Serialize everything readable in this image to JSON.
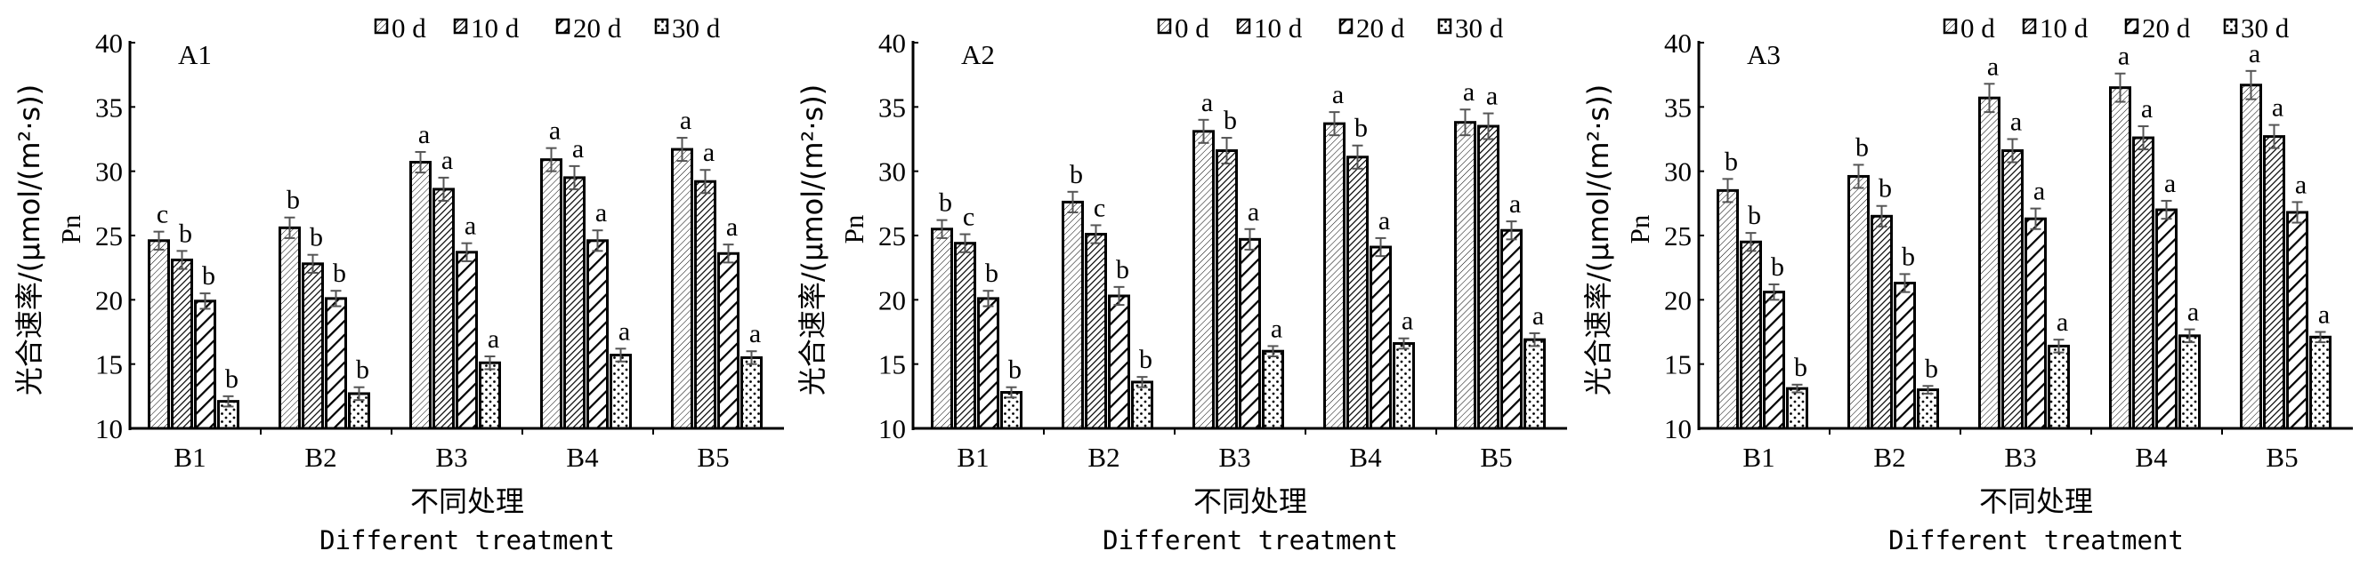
{
  "chart_data": [
    {
      "type": "bar",
      "title": "A1",
      "categories": [
        "B1",
        "B2",
        "B3",
        "B4",
        "B5"
      ],
      "xlabel": "不同处理",
      "xlabel_en": "Different treatment",
      "ylabel": "光合速率/(μmol/(m²·s))",
      "ylabel_en": "Pn",
      "ylim": [
        10,
        40
      ],
      "yticks": [
        10,
        15,
        20,
        25,
        30,
        35,
        40
      ],
      "legend": [
        "0 d",
        "10 d",
        "20 d",
        "30 d"
      ],
      "legend_position": "top-right",
      "series": [
        {
          "name": "0 d",
          "values": [
            24.6,
            25.6,
            30.7,
            30.9,
            31.7
          ],
          "error": [
            0.7,
            0.8,
            0.8,
            0.9,
            0.9
          ],
          "letters": [
            "c",
            "b",
            "a",
            "a",
            "a"
          ]
        },
        {
          "name": "10 d",
          "values": [
            23.1,
            22.8,
            28.6,
            29.5,
            29.2
          ],
          "error": [
            0.7,
            0.7,
            0.9,
            0.9,
            0.9
          ],
          "letters": [
            "b",
            "b",
            "a",
            "a",
            "a"
          ]
        },
        {
          "name": "20 d",
          "values": [
            19.9,
            20.1,
            23.7,
            24.6,
            23.6
          ],
          "error": [
            0.6,
            0.6,
            0.7,
            0.8,
            0.7
          ],
          "letters": [
            "b",
            "b",
            "a",
            "a",
            "a"
          ]
        },
        {
          "name": "30 d",
          "values": [
            12.1,
            12.7,
            15.1,
            15.7,
            15.5
          ],
          "error": [
            0.4,
            0.5,
            0.5,
            0.5,
            0.5
          ],
          "letters": [
            "b",
            "b",
            "a",
            "a",
            "a"
          ]
        }
      ]
    },
    {
      "type": "bar",
      "title": "A2",
      "categories": [
        "B1",
        "B2",
        "B3",
        "B4",
        "B5"
      ],
      "xlabel": "不同处理",
      "xlabel_en": "Different treatment",
      "ylabel": "光合速率/(μmol/(m²·s))",
      "ylabel_en": "Pn",
      "ylim": [
        10,
        40
      ],
      "yticks": [
        10,
        15,
        20,
        25,
        30,
        35,
        40
      ],
      "legend": [
        "0 d",
        "10 d",
        "20 d",
        "30 d"
      ],
      "legend_position": "top-right",
      "series": [
        {
          "name": "0 d",
          "values": [
            25.5,
            27.6,
            33.1,
            33.7,
            33.8
          ],
          "error": [
            0.7,
            0.8,
            0.9,
            0.9,
            1.0
          ],
          "letters": [
            "b",
            "b",
            "a",
            "a",
            "a"
          ]
        },
        {
          "name": "10 d",
          "values": [
            24.4,
            25.1,
            31.6,
            31.1,
            33.5
          ],
          "error": [
            0.7,
            0.7,
            1.0,
            0.9,
            1.0
          ],
          "letters": [
            "c",
            "c",
            "b",
            "b",
            "a"
          ]
        },
        {
          "name": "20 d",
          "values": [
            20.1,
            20.3,
            24.7,
            24.1,
            25.4
          ],
          "error": [
            0.6,
            0.7,
            0.8,
            0.7,
            0.7
          ],
          "letters": [
            "b",
            "b",
            "a",
            "a",
            "a"
          ]
        },
        {
          "name": "30 d",
          "values": [
            12.8,
            13.6,
            16.0,
            16.6,
            16.9
          ],
          "error": [
            0.4,
            0.4,
            0.4,
            0.4,
            0.5
          ],
          "letters": [
            "b",
            "b",
            "a",
            "a",
            "a"
          ]
        }
      ]
    },
    {
      "type": "bar",
      "title": "A3",
      "categories": [
        "B1",
        "B2",
        "B3",
        "B4",
        "B5"
      ],
      "xlabel": "不同处理",
      "xlabel_en": "Different treatment",
      "ylabel": "光合速率/(μmol/(m²·s))",
      "ylabel_en": "Pn",
      "ylim": [
        10,
        40
      ],
      "yticks": [
        10,
        15,
        20,
        25,
        30,
        35,
        40
      ],
      "legend": [
        "0 d",
        "10 d",
        "20 d",
        "30 d"
      ],
      "legend_position": "top-right",
      "series": [
        {
          "name": "0 d",
          "values": [
            28.5,
            29.6,
            35.7,
            36.5,
            36.7
          ],
          "error": [
            0.9,
            0.9,
            1.1,
            1.1,
            1.1
          ],
          "letters": [
            "b",
            "b",
            "a",
            "a",
            "a"
          ]
        },
        {
          "name": "10 d",
          "values": [
            24.5,
            26.5,
            31.6,
            32.6,
            32.7
          ],
          "error": [
            0.7,
            0.8,
            0.9,
            0.9,
            0.9
          ],
          "letters": [
            "b",
            "b",
            "a",
            "a",
            "a"
          ]
        },
        {
          "name": "20 d",
          "values": [
            20.6,
            21.3,
            26.3,
            27.0,
            26.8
          ],
          "error": [
            0.6,
            0.7,
            0.8,
            0.7,
            0.8
          ],
          "letters": [
            "b",
            "b",
            "a",
            "a",
            "a"
          ]
        },
        {
          "name": "30 d",
          "values": [
            13.1,
            13.0,
            16.4,
            17.2,
            17.1
          ],
          "error": [
            0.3,
            0.3,
            0.5,
            0.5,
            0.4
          ],
          "letters": [
            "b",
            "b",
            "a",
            "a",
            "a"
          ]
        }
      ]
    }
  ]
}
